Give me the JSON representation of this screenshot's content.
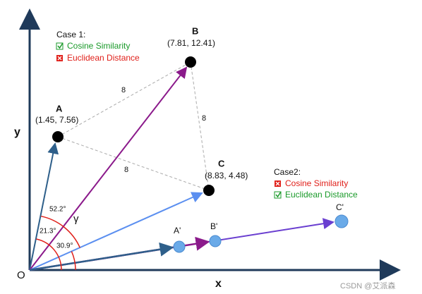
{
  "axes": {
    "x": "x",
    "y": "y",
    "origin": "O"
  },
  "points": [
    {
      "label": "A",
      "coords": "(1.45, 7.56)"
    },
    {
      "label": "B",
      "coords": "(7.81, 12.41)"
    },
    {
      "label": "C",
      "coords": "(8.83, 4.48)"
    }
  ],
  "scaled_points": [
    "A'",
    "B'",
    "C'"
  ],
  "distances": [
    "8",
    "8",
    "8"
  ],
  "angles": [
    "52.2°",
    "21.3°",
    "30.9°",
    "γ"
  ],
  "cases": [
    {
      "title": "Case 1:",
      "items": [
        "Cosine Similarity",
        "Euclidean Distance"
      ]
    },
    {
      "title": "Case2:",
      "items": [
        "Cosine Similarity",
        "Euclidean Distance"
      ]
    }
  ],
  "watermark": "CSDN @艾派森"
}
